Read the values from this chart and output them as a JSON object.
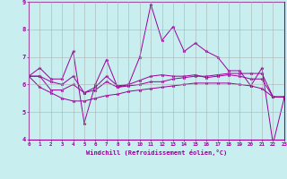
{
  "xlabel": "Windchill (Refroidissement éolien,°C)",
  "background_color": "#c8eef0",
  "grid_color": "#aaaaaa",
  "line_color": "#990099",
  "x_values": [
    0,
    1,
    2,
    3,
    4,
    5,
    6,
    7,
    8,
    9,
    10,
    11,
    12,
    13,
    14,
    15,
    16,
    17,
    18,
    19,
    20,
    21,
    22,
    23
  ],
  "series": [
    [
      6.3,
      6.6,
      6.2,
      6.2,
      7.2,
      4.6,
      6.0,
      6.9,
      5.9,
      6.0,
      7.0,
      8.9,
      7.6,
      8.1,
      7.2,
      7.5,
      7.2,
      7.0,
      6.5,
      6.5,
      5.95,
      6.6,
      3.85,
      5.5
    ],
    [
      6.3,
      6.3,
      5.8,
      5.8,
      6.0,
      5.7,
      5.8,
      6.1,
      5.9,
      5.95,
      6.0,
      6.1,
      6.1,
      6.2,
      6.25,
      6.3,
      6.3,
      6.35,
      6.4,
      6.4,
      6.4,
      6.4,
      5.55,
      5.55
    ],
    [
      6.3,
      5.9,
      5.7,
      5.5,
      5.4,
      5.4,
      5.5,
      5.6,
      5.65,
      5.75,
      5.8,
      5.85,
      5.9,
      5.95,
      6.0,
      6.05,
      6.05,
      6.05,
      6.05,
      6.0,
      5.95,
      5.85,
      5.55,
      5.55
    ],
    [
      6.3,
      6.3,
      6.1,
      6.0,
      6.3,
      5.7,
      5.9,
      6.3,
      5.95,
      6.0,
      6.15,
      6.3,
      6.35,
      6.3,
      6.3,
      6.35,
      6.25,
      6.3,
      6.35,
      6.3,
      6.2,
      6.2,
      5.55,
      5.55
    ]
  ],
  "ylim": [
    4,
    9
  ],
  "xlim": [
    0,
    23
  ],
  "yticks": [
    4,
    5,
    6,
    7,
    8,
    9
  ],
  "xticks": [
    0,
    1,
    2,
    3,
    4,
    5,
    6,
    7,
    8,
    9,
    10,
    11,
    12,
    13,
    14,
    15,
    16,
    17,
    18,
    19,
    20,
    21,
    22,
    23
  ]
}
